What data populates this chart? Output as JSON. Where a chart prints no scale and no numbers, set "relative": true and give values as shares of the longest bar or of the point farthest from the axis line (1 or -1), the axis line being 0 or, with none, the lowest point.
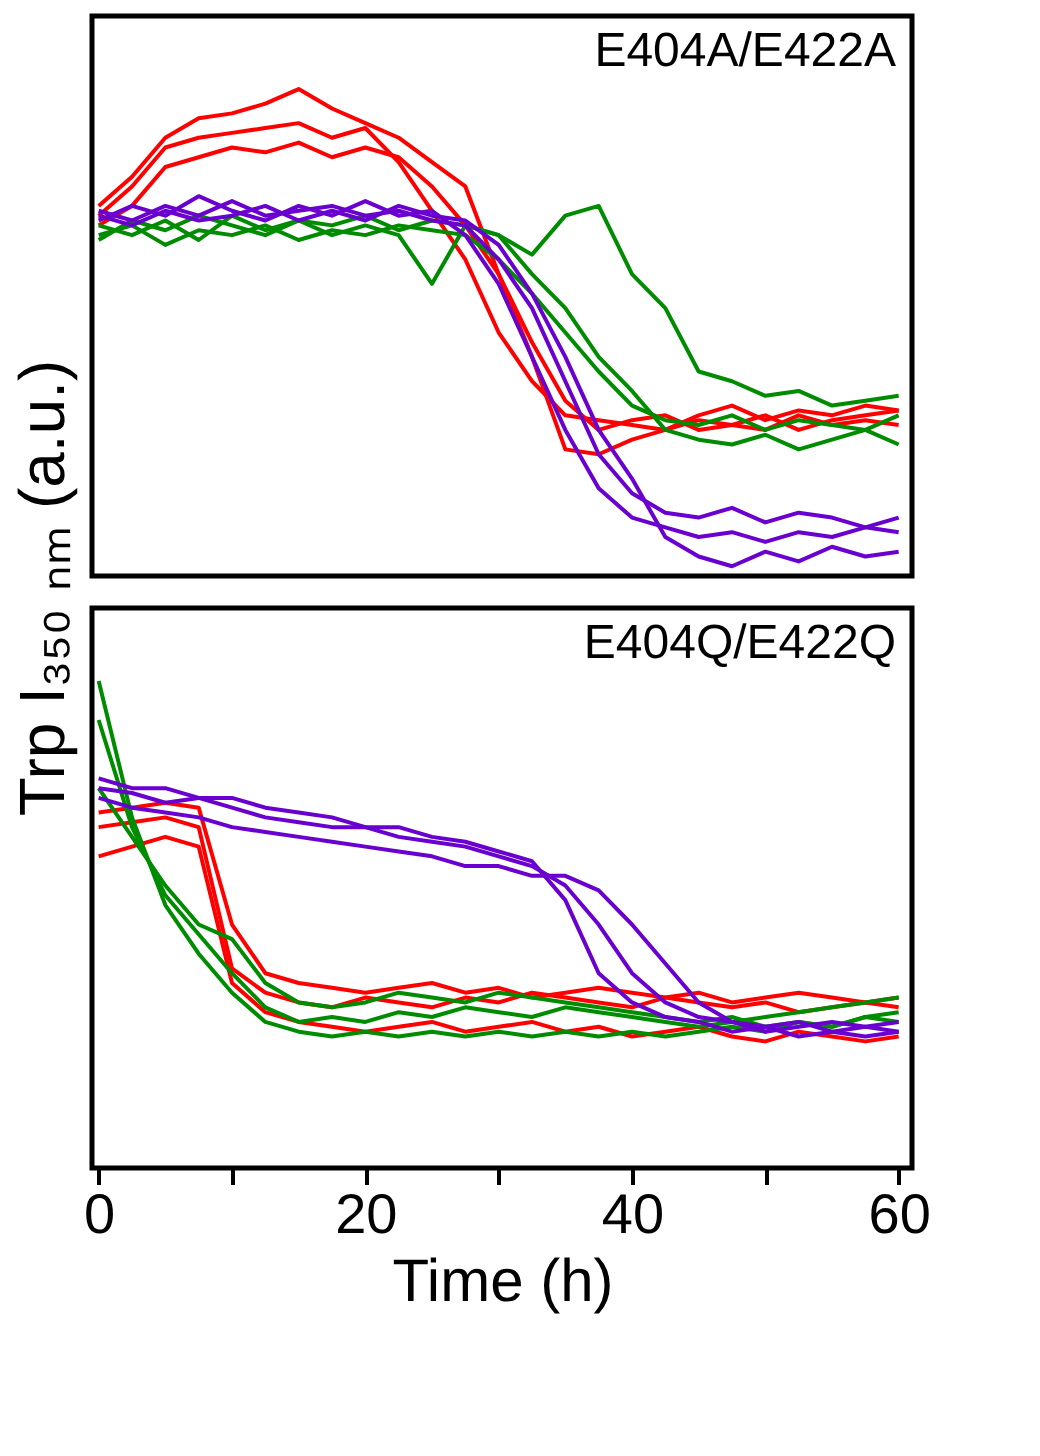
{
  "chart_data": [
    {
      "type": "line",
      "relative": true,
      "ylabel": "Trp I₃₅₀ ₙₘ (a.u.)",
      "annotations": [
        "E404A/E422A"
      ],
      "xlim": [
        -0.5,
        61
      ],
      "tick_labels": false,
      "legend": false,
      "marker": "none",
      "line_style": "solid",
      "x": [
        0,
        2.5,
        5,
        7.5,
        10,
        12.5,
        15,
        17.5,
        20,
        22.5,
        25,
        27.5,
        30,
        32.5,
        35,
        37.5,
        40,
        42.5,
        45,
        47.5,
        50,
        52.5,
        55,
        57.5,
        60
      ],
      "series": [
        {
          "color": "#ff0000",
          "values": [
            0.74,
            0.8,
            0.88,
            0.9,
            0.91,
            0.92,
            0.93,
            0.9,
            0.92,
            0.85,
            0.75,
            0.65,
            0.5,
            0.4,
            0.33,
            0.32,
            0.31,
            0.3,
            0.32,
            0.31,
            0.3,
            0.33,
            0.31,
            0.32,
            0.31
          ]
        },
        {
          "color": "#ff0000",
          "values": [
            0.72,
            0.76,
            0.84,
            0.86,
            0.88,
            0.87,
            0.89,
            0.86,
            0.88,
            0.86,
            0.8,
            0.72,
            0.62,
            0.48,
            0.36,
            0.3,
            0.32,
            0.33,
            0.3,
            0.31,
            0.33,
            0.3,
            0.32,
            0.33,
            0.34
          ]
        },
        {
          "color": "#ff0000",
          "values": [
            0.76,
            0.82,
            0.9,
            0.94,
            0.95,
            0.97,
            1.0,
            0.96,
            0.93,
            0.9,
            0.85,
            0.8,
            0.62,
            0.45,
            0.26,
            0.25,
            0.28,
            0.3,
            0.33,
            0.35,
            0.32,
            0.34,
            0.33,
            0.35,
            0.34
          ]
        },
        {
          "color": "#008c00",
          "values": [
            0.7,
            0.72,
            0.68,
            0.71,
            0.7,
            0.72,
            0.69,
            0.71,
            0.7,
            0.72,
            0.71,
            0.7,
            0.65,
            0.58,
            0.5,
            0.42,
            0.35,
            0.32,
            0.31,
            0.33,
            0.3,
            0.32,
            0.31,
            0.3,
            0.33
          ]
        },
        {
          "color": "#008c00",
          "values": [
            0.72,
            0.7,
            0.73,
            0.69,
            0.74,
            0.71,
            0.73,
            0.7,
            0.72,
            0.7,
            0.6,
            0.72,
            0.7,
            0.62,
            0.55,
            0.45,
            0.38,
            0.3,
            0.28,
            0.27,
            0.29,
            0.26,
            0.28,
            0.3,
            0.27
          ]
        },
        {
          "color": "#008c00",
          "values": [
            0.69,
            0.73,
            0.71,
            0.74,
            0.72,
            0.7,
            0.73,
            0.72,
            0.74,
            0.71,
            0.73,
            0.72,
            0.7,
            0.66,
            0.74,
            0.76,
            0.62,
            0.55,
            0.42,
            0.4,
            0.37,
            0.38,
            0.35,
            0.36,
            0.37
          ]
        },
        {
          "color": "#6a00d0",
          "values": [
            0.75,
            0.73,
            0.76,
            0.74,
            0.77,
            0.74,
            0.75,
            0.76,
            0.74,
            0.75,
            0.73,
            0.72,
            0.65,
            0.55,
            0.4,
            0.25,
            0.17,
            0.13,
            0.12,
            0.14,
            0.11,
            0.13,
            0.12,
            0.1,
            0.12
          ]
        },
        {
          "color": "#6a00d0",
          "values": [
            0.73,
            0.76,
            0.74,
            0.78,
            0.75,
            0.73,
            0.76,
            0.74,
            0.77,
            0.74,
            0.75,
            0.7,
            0.6,
            0.45,
            0.3,
            0.18,
            0.12,
            0.1,
            0.08,
            0.09,
            0.07,
            0.09,
            0.08,
            0.1,
            0.09
          ]
        },
        {
          "color": "#6a00d0",
          "values": [
            0.74,
            0.72,
            0.75,
            0.73,
            0.74,
            0.76,
            0.73,
            0.75,
            0.73,
            0.76,
            0.74,
            0.73,
            0.68,
            0.58,
            0.45,
            0.3,
            0.2,
            0.08,
            0.04,
            0.02,
            0.05,
            0.03,
            0.06,
            0.04,
            0.05
          ]
        }
      ]
    },
    {
      "type": "line",
      "relative": true,
      "xlabel": "Time (h)",
      "annotations": [
        "E404Q/E422Q"
      ],
      "xlim": [
        -0.5,
        61
      ],
      "xticks": [
        0,
        {
          "value": 10,
          "label": null
        },
        20,
        {
          "value": 30,
          "label": null
        },
        40,
        {
          "value": 50,
          "label": null
        },
        60
      ],
      "tick_labels": "x",
      "grid": false,
      "legend": false,
      "marker": "none",
      "line_style": "solid",
      "x": [
        0,
        2.5,
        5,
        7.5,
        10,
        12.5,
        15,
        17.5,
        20,
        22.5,
        25,
        27.5,
        30,
        32.5,
        35,
        37.5,
        40,
        42.5,
        45,
        47.5,
        50,
        52.5,
        55,
        57.5,
        60
      ],
      "series": [
        {
          "color": "#ff0000",
          "values": [
            0.7,
            0.71,
            0.72,
            0.7,
            0.41,
            0.36,
            0.34,
            0.33,
            0.35,
            0.34,
            0.33,
            0.35,
            0.34,
            0.36,
            0.35,
            0.34,
            0.33,
            0.35,
            0.34,
            0.33,
            0.34,
            0.32,
            0.33,
            0.34,
            0.33
          ]
        },
        {
          "color": "#ff0000",
          "values": [
            0.64,
            0.66,
            0.68,
            0.66,
            0.38,
            0.32,
            0.3,
            0.29,
            0.28,
            0.29,
            0.3,
            0.28,
            0.29,
            0.3,
            0.28,
            0.29,
            0.27,
            0.28,
            0.29,
            0.27,
            0.26,
            0.28,
            0.27,
            0.26,
            0.27
          ]
        },
        {
          "color": "#ff0000",
          "values": [
            0.73,
            0.74,
            0.75,
            0.74,
            0.5,
            0.4,
            0.38,
            0.37,
            0.36,
            0.37,
            0.38,
            0.36,
            0.37,
            0.35,
            0.36,
            0.37,
            0.36,
            0.35,
            0.36,
            0.34,
            0.35,
            0.36,
            0.35,
            0.34,
            0.35
          ]
        },
        {
          "color": "#008c00",
          "values": [
            1.0,
            0.72,
            0.54,
            0.44,
            0.36,
            0.3,
            0.28,
            0.27,
            0.28,
            0.27,
            0.28,
            0.27,
            0.28,
            0.27,
            0.28,
            0.27,
            0.28,
            0.27,
            0.28,
            0.29,
            0.28,
            0.3,
            0.29,
            0.31,
            0.3
          ]
        },
        {
          "color": "#008c00",
          "values": [
            0.92,
            0.7,
            0.56,
            0.48,
            0.4,
            0.33,
            0.3,
            0.31,
            0.3,
            0.32,
            0.31,
            0.33,
            0.32,
            0.31,
            0.33,
            0.32,
            0.31,
            0.3,
            0.29,
            0.3,
            0.31,
            0.32,
            0.33,
            0.34,
            0.35
          ]
        },
        {
          "color": "#008c00",
          "values": [
            0.78,
            0.68,
            0.58,
            0.5,
            0.47,
            0.38,
            0.34,
            0.33,
            0.34,
            0.36,
            0.35,
            0.34,
            0.36,
            0.35,
            0.34,
            0.33,
            0.32,
            0.31,
            0.3,
            0.31,
            0.29,
            0.3,
            0.29,
            0.31,
            0.32
          ]
        },
        {
          "color": "#6a00d0",
          "values": [
            0.78,
            0.77,
            0.75,
            0.76,
            0.74,
            0.72,
            0.71,
            0.7,
            0.7,
            0.68,
            0.67,
            0.66,
            0.64,
            0.62,
            0.58,
            0.5,
            0.4,
            0.34,
            0.31,
            0.3,
            0.29,
            0.3,
            0.28,
            0.29,
            0.28
          ]
        },
        {
          "color": "#6a00d0",
          "values": [
            0.8,
            0.78,
            0.78,
            0.76,
            0.76,
            0.74,
            0.73,
            0.72,
            0.7,
            0.7,
            0.68,
            0.67,
            0.65,
            0.63,
            0.55,
            0.4,
            0.34,
            0.31,
            0.3,
            0.28,
            0.29,
            0.27,
            0.28,
            0.27,
            0.28
          ]
        },
        {
          "color": "#6a00d0",
          "values": [
            0.76,
            0.74,
            0.73,
            0.72,
            0.7,
            0.69,
            0.68,
            0.67,
            0.66,
            0.65,
            0.64,
            0.62,
            0.62,
            0.6,
            0.6,
            0.57,
            0.5,
            0.42,
            0.34,
            0.3,
            0.28,
            0.29,
            0.3,
            0.29,
            0.3
          ]
        }
      ]
    }
  ]
}
